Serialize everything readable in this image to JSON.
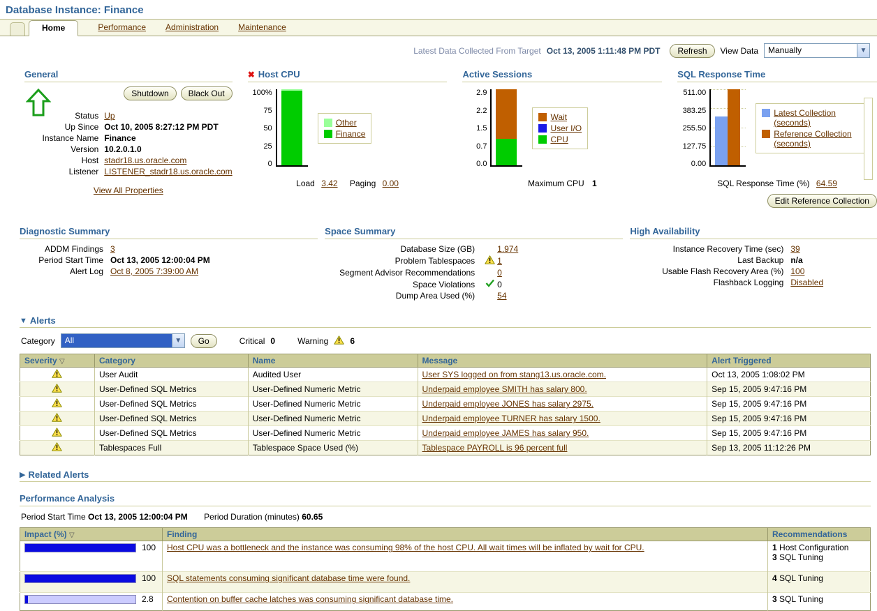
{
  "page_title": "Database Instance: Finance",
  "colors": {
    "heading_blue": "#336699",
    "link_brown": "#663300",
    "table_header_bg": "#CCCC99",
    "finance_green": "#00CC00",
    "other_light_green": "#99FF99",
    "wait_brown": "#C05F00",
    "user_io_blue": "#1A1AE6",
    "cpu_green": "#00CC00",
    "latest_blue": "#7AA1F0",
    "reference_orange": "#C05F00",
    "impact_blue": "#0B0BE0",
    "impact_track": "#CCCCFF"
  },
  "tabs": {
    "home": "Home",
    "performance": "Performance",
    "administration": "Administration",
    "maintenance": "Maintenance"
  },
  "topbar": {
    "latest_label": "Latest Data Collected From Target",
    "latest_value": "Oct 13, 2005 1:11:48 PM PDT",
    "refresh_button": "Refresh",
    "view_data_label": "View Data",
    "view_data_value": "Manually"
  },
  "general": {
    "title": "General",
    "shutdown_button": "Shutdown",
    "blackout_button": "Black Out",
    "status_icon": "green-up-arrow",
    "fields": [
      {
        "label": "Status",
        "value": "Up"
      },
      {
        "label": "Up Since",
        "value": "Oct 10, 2005 8:27:12 PM PDT"
      },
      {
        "label": "Instance Name",
        "value": "Finance"
      },
      {
        "label": "Version",
        "value": "10.2.0.1.0"
      },
      {
        "label": "Host",
        "value": "stadr18.us.oracle.com"
      },
      {
        "label": "Listener",
        "value": "LISTENER_stadr18.us.oracle.com"
      }
    ],
    "view_all_link": "View All Properties"
  },
  "host_cpu": {
    "title": "Host CPU",
    "yticks": [
      "100%",
      "75",
      "50",
      "25",
      "0"
    ],
    "bar": {
      "other_pct": 2,
      "finance_pct": 98
    },
    "legend": [
      {
        "label": "Other",
        "color": "#99FF99"
      },
      {
        "label": "Finance",
        "color": "#00CC00"
      }
    ],
    "load_label": "Load",
    "load_value": "3.42",
    "paging_label": "Paging",
    "paging_value": "0.00"
  },
  "active_sessions": {
    "title": "Active Sessions",
    "yticks": [
      "2.9",
      "2.2",
      "1.5",
      "0.7",
      "0.0"
    ],
    "bar": {
      "wait_pct": 65.5,
      "cpu_pct": 34.5
    },
    "legend": [
      {
        "label": "Wait",
        "color": "#C05F00"
      },
      {
        "label": "User I/O",
        "color": "#1A1AE6"
      },
      {
        "label": "CPU",
        "color": "#00CC00"
      }
    ],
    "max_cpu_label": "Maximum CPU",
    "max_cpu_value": "1"
  },
  "sql_response": {
    "title": "SQL Response Time",
    "yticks": [
      "511.00",
      "383.25",
      "255.50",
      "127.75",
      "0.00"
    ],
    "bars": [
      {
        "name": "Latest Collection (seconds)",
        "value": 330,
        "height_pct": 64.6,
        "color": "#7AA1F0"
      },
      {
        "name": "Reference Collection (seconds)",
        "value": 511,
        "height_pct": 100,
        "color": "#C05F00"
      }
    ],
    "legend": [
      {
        "label": "Latest Collection (seconds)",
        "color": "#7AA1F0"
      },
      {
        "label": "Reference Collection (seconds)",
        "color": "#C05F00"
      }
    ],
    "footer_label": "SQL Response Time (%)",
    "footer_value": "64.59",
    "edit_button": "Edit Reference Collection"
  },
  "diagnostic_summary": {
    "title": "Diagnostic Summary",
    "rows": [
      {
        "label": "ADDM Findings",
        "value": "3"
      },
      {
        "label": "Period Start Time",
        "value": "Oct 13, 2005 12:00:04 PM"
      },
      {
        "label": "Alert Log",
        "value": "Oct 8, 2005 7:39:00 AM"
      }
    ]
  },
  "space_summary": {
    "title": "Space Summary",
    "rows": [
      {
        "label": "Database Size (GB)",
        "value": "1.974",
        "icon": ""
      },
      {
        "label": "Problem Tablespaces",
        "value": "1",
        "icon": "warning"
      },
      {
        "label": "Segment Advisor Recommendations",
        "value": "0",
        "icon": ""
      },
      {
        "label": "Space Violations",
        "value": "0",
        "icon": "check"
      },
      {
        "label": "Dump Area Used (%)",
        "value": "54",
        "icon": ""
      }
    ]
  },
  "high_availability": {
    "title": "High Availability",
    "rows": [
      {
        "label": "Instance Recovery Time (sec)",
        "value": "39"
      },
      {
        "label": "Last Backup",
        "value": "n/a"
      },
      {
        "label": "Usable Flash Recovery Area (%)",
        "value": "100"
      },
      {
        "label": "Flashback Logging",
        "value": "Disabled"
      }
    ]
  },
  "alerts": {
    "title": "Alerts",
    "category_label": "Category",
    "category_value": "All",
    "go_button": "Go",
    "critical_label": "Critical",
    "critical_value": "0",
    "warning_label": "Warning",
    "warning_value": "6",
    "columns": {
      "severity": "Severity",
      "category": "Category",
      "name": "Name",
      "message": "Message",
      "triggered": "Alert Triggered"
    },
    "rows": [
      {
        "category": "User Audit",
        "name": "Audited User",
        "message": "User SYS logged on from stang13.us.oracle.com.",
        "triggered": "Oct 13, 2005 1:08:02 PM"
      },
      {
        "category": "User-Defined SQL Metrics",
        "name": "User-Defined Numeric Metric",
        "message": "Underpaid employee SMITH has salary 800.",
        "triggered": "Sep 15, 2005 9:47:16 PM"
      },
      {
        "category": "User-Defined SQL Metrics",
        "name": "User-Defined Numeric Metric",
        "message": "Underpaid employee JONES has salary 2975.",
        "triggered": "Sep 15, 2005 9:47:16 PM"
      },
      {
        "category": "User-Defined SQL Metrics",
        "name": "User-Defined Numeric Metric",
        "message": "Underpaid employee TURNER has salary 1500.",
        "triggered": "Sep 15, 2005 9:47:16 PM"
      },
      {
        "category": "User-Defined SQL Metrics",
        "name": "User-Defined Numeric Metric",
        "message": "Underpaid employee JAMES has salary 950.",
        "triggered": "Sep 15, 2005 9:47:16 PM"
      },
      {
        "category": "Tablespaces Full",
        "name": "Tablespace Space Used (%)",
        "message": "Tablespace PAYROLL is 96 percent full",
        "triggered": "Sep 13, 2005 11:12:26 PM"
      }
    ]
  },
  "related_alerts": {
    "title": "Related Alerts"
  },
  "performance": {
    "title": "Performance Analysis",
    "period_start_label": "Period Start Time",
    "period_start_value": "Oct 13, 2005 12:00:04 PM",
    "duration_label": "Period Duration (minutes)",
    "duration_value": "60.65",
    "columns": {
      "impact": "Impact (%)",
      "finding": "Finding",
      "recommendations": "Recommendations"
    },
    "rows": [
      {
        "impact": 100,
        "impact_label": "100",
        "finding": "Host CPU was a bottleneck and the instance was consuming 98% of the host CPU. All wait times will be inflated by wait for CPU.",
        "recs": [
          {
            "n": "1",
            "label": "Host Configuration"
          },
          {
            "n": "3",
            "label": "SQL Tuning"
          }
        ]
      },
      {
        "impact": 100,
        "impact_label": "100",
        "finding": "SQL statements consuming significant database time were found.",
        "recs": [
          {
            "n": "4",
            "label": "SQL Tuning"
          }
        ]
      },
      {
        "impact": 2.8,
        "impact_label": "2.8",
        "finding": "Contention on buffer cache latches was consuming significant database time.",
        "recs": [
          {
            "n": "3",
            "label": "SQL Tuning"
          }
        ]
      }
    ]
  },
  "chart_data": [
    {
      "type": "bar",
      "title": "Host CPU",
      "ylabel": "%",
      "ylim": [
        0,
        100
      ],
      "categories": [
        "Host CPU"
      ],
      "series": [
        {
          "name": "Finance",
          "values": [
            98
          ]
        },
        {
          "name": "Other",
          "values": [
            2
          ]
        }
      ],
      "legend_position": "right",
      "grid": false
    },
    {
      "type": "bar",
      "title": "Active Sessions",
      "ylim": [
        0,
        2.9
      ],
      "categories": [
        "Active Sessions"
      ],
      "series": [
        {
          "name": "CPU",
          "values": [
            1.0
          ]
        },
        {
          "name": "User I/O",
          "values": [
            0
          ]
        },
        {
          "name": "Wait",
          "values": [
            1.9
          ]
        }
      ],
      "legend_position": "right",
      "grid": false
    },
    {
      "type": "bar",
      "title": "SQL Response Time",
      "ylim": [
        0,
        511
      ],
      "categories": [
        "Latest Collection (seconds)",
        "Reference Collection (seconds)"
      ],
      "values": [
        330,
        511
      ],
      "legend_position": "right",
      "grid": true
    }
  ]
}
